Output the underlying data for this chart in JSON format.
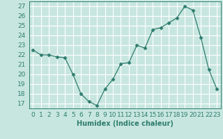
{
  "x": [
    0,
    1,
    2,
    3,
    4,
    5,
    6,
    7,
    8,
    9,
    10,
    11,
    12,
    13,
    14,
    15,
    16,
    17,
    18,
    19,
    20,
    21,
    22,
    23
  ],
  "y": [
    22.5,
    22.0,
    22.0,
    21.8,
    21.7,
    20.0,
    18.0,
    17.2,
    16.8,
    18.5,
    19.5,
    21.1,
    21.2,
    23.0,
    22.7,
    24.6,
    24.8,
    25.3,
    25.8,
    27.0,
    26.6,
    23.8,
    20.5,
    18.5
  ],
  "line_color": "#2e7d6e",
  "marker": "D",
  "marker_size": 2.5,
  "bg_color": "#c8e6e0",
  "grid_color": "#ffffff",
  "xlabel": "Humidex (Indice chaleur)",
  "ylabel_ticks": [
    17,
    18,
    19,
    20,
    21,
    22,
    23,
    24,
    25,
    26,
    27
  ],
  "ylim": [
    16.5,
    27.5
  ],
  "xlim": [
    -0.5,
    23.5
  ],
  "label_fontsize": 7,
  "tick_fontsize": 6.5
}
